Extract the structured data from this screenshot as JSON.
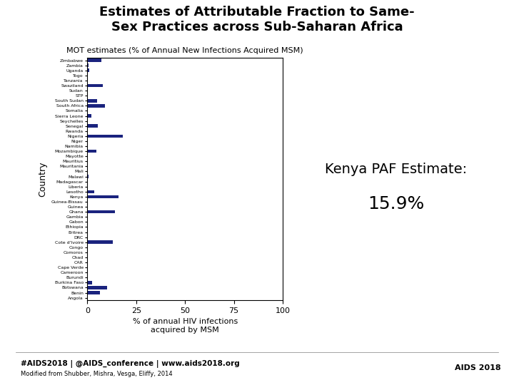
{
  "chart_data": {
    "type": "bar",
    "orientation": "horizontal",
    "title": "Estimates of Attributable Fraction to Same-\nSex Practices across Sub-Saharan Africa",
    "subtitle": "MOT estimates (% of Annual New Infections Acquired MSM)",
    "xlabel": "% of annual HIV infections\nacquired by MSM",
    "ylabel": "Country",
    "annotations": [
      "Kenya PAF Estimate:",
      "15.9%",
      "#AIDS2018 | @AIDS_conference | www.aids2018.org",
      "Modified from Shubber, Mishra, Vesga, Eliffy, 2014",
      "AIDS 2018"
    ],
    "categories": [
      "Zimbabwe",
      "Zambia",
      "Uganda",
      "Togo",
      "Tanzania",
      "Swaziland",
      "Sudan",
      "STP",
      "South Sudan",
      "South Africa",
      "Somalia",
      "Sierra Leone",
      "Seychelles",
      "Senegal",
      "Rwanda",
      "Nigeria",
      "Niger",
      "Namibia",
      "Mozambique",
      "Mayotte",
      "Mauritius",
      "Mauritania",
      "Mali",
      "Malawi",
      "Madagascar",
      "Liberia",
      "Lesotho",
      "Kenya",
      "Guinea-Bissau",
      "Guinea",
      "Ghana",
      "Gambia",
      "Gabon",
      "Ethiopia",
      "Eritrea",
      "DRC",
      "Cote d'Ivoire",
      "Congo",
      "Comoros",
      "Chad",
      "CAR",
      "Cape Verde",
      "Cameroon",
      "Burundi",
      "Burkina Faso",
      "Botswana",
      "Benin",
      "Angola"
    ],
    "values": [
      7.0,
      0.5,
      1.0,
      0.0,
      0.0,
      8.0,
      0.0,
      0.0,
      5.0,
      9.0,
      0.0,
      2.0,
      0.0,
      5.5,
      0.0,
      18.0,
      0.0,
      0.0,
      4.5,
      0.0,
      0.0,
      0.0,
      0.0,
      0.5,
      0.0,
      0.0,
      3.5,
      15.9,
      0.0,
      0.0,
      14.0,
      0.0,
      0.0,
      0.0,
      0.0,
      0.0,
      13.0,
      0.0,
      0.0,
      0.0,
      0.0,
      0.0,
      0.0,
      0.0,
      2.5,
      10.0,
      6.5,
      0.0
    ],
    "color": "#1a237e",
    "xlim": [
      0,
      100
    ],
    "xticks": [
      0,
      25,
      50,
      75,
      100
    ],
    "grid": false
  }
}
